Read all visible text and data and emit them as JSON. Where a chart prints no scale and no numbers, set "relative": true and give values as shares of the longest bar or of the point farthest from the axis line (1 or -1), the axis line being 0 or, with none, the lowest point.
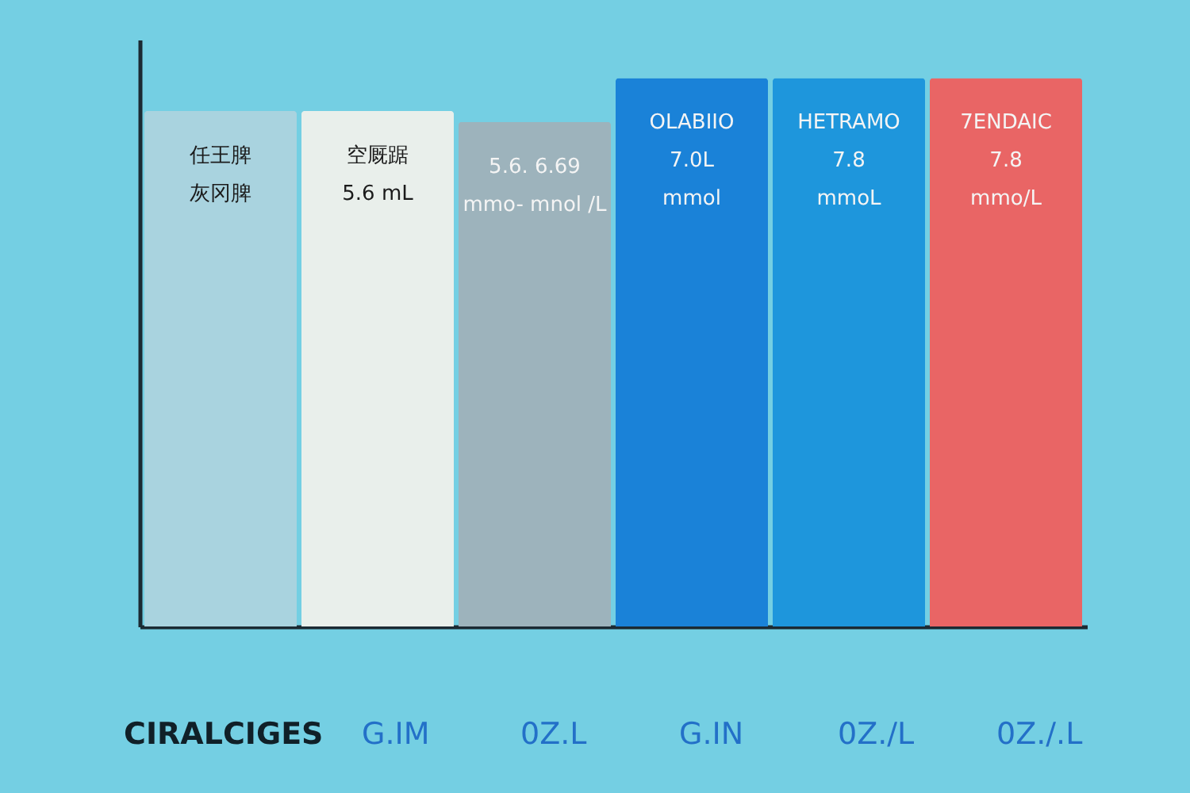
{
  "chart_data": {
    "type": "bar",
    "relative": true,
    "categories": [
      null,
      null,
      null,
      null,
      null,
      null
    ],
    "values": [
      0.94,
      0.94,
      0.92,
      1,
      1,
      1
    ],
    "colors": [
      "#a9d3df",
      "#e9efeb",
      "#9db3bc",
      "#1a82d8",
      "#1e96dc",
      "#e96565"
    ],
    "annotations": [
      "任王脾",
      "灰冈脾",
      "空厩踞",
      "5.6 mL",
      "5.6.   6.69",
      "mmo-  mnol /L",
      "OLABIIO",
      "7.0L",
      "mmol",
      "HETRAMO",
      "7.8",
      "mmoL",
      "7ENDAIC",
      "7.8",
      "mmo/L",
      "CIRALCIGES",
      "G.IM",
      "0Z.L",
      "G.IN",
      "0Z./L",
      "0Z./.L"
    ],
    "grid": false,
    "tick_labels": false
  }
}
